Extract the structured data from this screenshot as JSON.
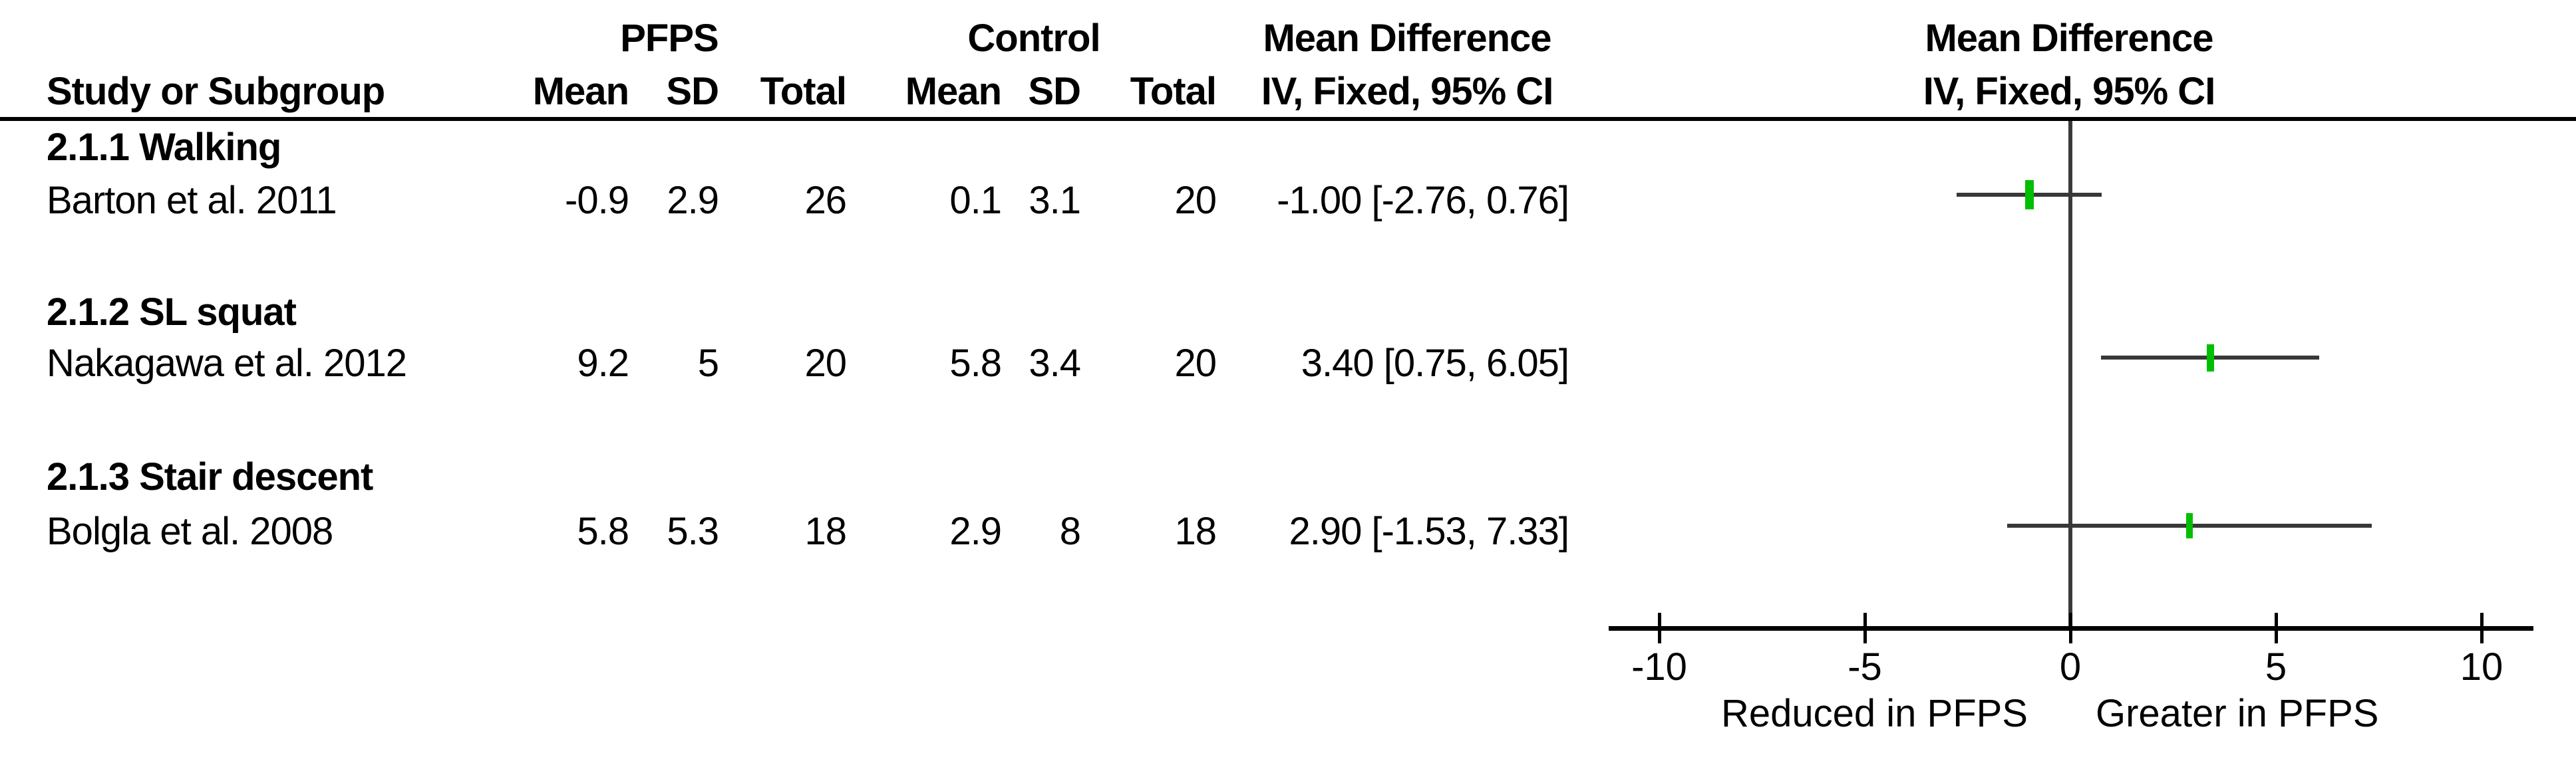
{
  "table": {
    "header": {
      "study_col": "Study or Subgroup",
      "group1": "PFPS",
      "group2": "Control",
      "mean": "Mean",
      "sd": "SD",
      "total": "Total",
      "md_title": "Mean Difference",
      "md_subtitle": "IV, Fixed, 95% CI"
    },
    "subgroups": [
      {
        "title": "2.1.1 Walking",
        "study": {
          "name": "Barton et al. 2011",
          "mean": "-0.9",
          "sd": "2.9",
          "total": "26",
          "c_mean": "0.1",
          "c_sd": "3.1",
          "c_total": "20",
          "ci_text": "-1.00 [-2.76, 0.76]"
        }
      },
      {
        "title": "2.1.2 SL squat",
        "study": {
          "name": "Nakagawa et al. 2012",
          "mean": "9.2",
          "sd": "5",
          "total": "20",
          "c_mean": "5.8",
          "c_sd": "3.4",
          "c_total": "20",
          "ci_text": "3.40 [0.75, 6.05]"
        }
      },
      {
        "title": "2.1.3 Stair descent",
        "study": {
          "name": "Bolgla et al. 2008",
          "mean": "5.8",
          "sd": "5.3",
          "total": "18",
          "c_mean": "2.9",
          "c_sd": "8",
          "c_total": "18",
          "ci_text": "2.90 [-1.53, 7.33]"
        }
      }
    ]
  },
  "chart_data": {
    "type": "forest",
    "title": "Mean Difference",
    "subtitle": "IV, Fixed, 95% CI",
    "effect_model": "IV, Fixed, 95% CI",
    "studies": [
      {
        "name": "Barton et al. 2011",
        "subgroup": "2.1.1 Walking",
        "md": -1.0,
        "ci": [
          -2.76,
          0.76
        ]
      },
      {
        "name": "Nakagawa et al. 2012",
        "subgroup": "2.1.2 SL squat",
        "md": 3.4,
        "ci": [
          0.75,
          6.05
        ]
      },
      {
        "name": "Bolgla et al. 2008",
        "subgroup": "2.1.3 Stair descent",
        "md": 2.9,
        "ci": [
          -1.53,
          7.33
        ]
      }
    ],
    "x_axis": {
      "ticks": [
        -10,
        -5,
        0,
        5,
        10
      ],
      "range": [
        -11.2,
        11.3
      ],
      "label_left": "Reduced in PFPS",
      "label_right": "Greater in PFPS"
    },
    "marker_color": "#00BE00",
    "line_color": "#383838",
    "axis_color": "#000000"
  }
}
